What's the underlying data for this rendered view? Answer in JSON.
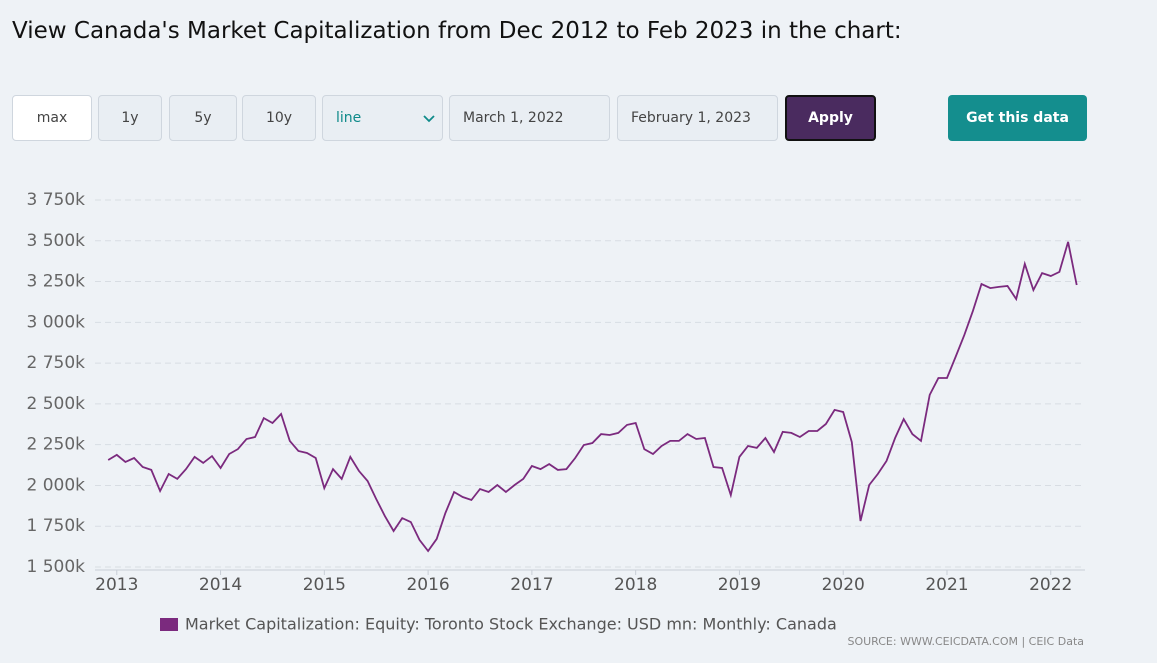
{
  "header": {
    "title": "View Canada's Market Capitalization from Dec 2012 to Feb 2023 in the chart:"
  },
  "controls": {
    "ranges": [
      "max",
      "1y",
      "5y",
      "10y"
    ],
    "chart_type": "line",
    "start_date": "March 1, 2022",
    "end_date": "February 1, 2023",
    "apply": "Apply",
    "get_data": "Get this data"
  },
  "chart_data": {
    "type": "line",
    "source": "SOURCE: WWW.CEICDATA.COM | CEIC Data",
    "x": [
      2012.917,
      2013,
      2013.083,
      2013.167,
      2013.25,
      2013.333,
      2013.417,
      2013.5,
      2013.583,
      2013.667,
      2013.75,
      2013.833,
      2013.917,
      2014,
      2014.083,
      2014.167,
      2014.25,
      2014.333,
      2014.417,
      2014.5,
      2014.583,
      2014.667,
      2014.75,
      2014.833,
      2014.917,
      2015,
      2015.083,
      2015.167,
      2015.25,
      2015.333,
      2015.417,
      2015.5,
      2015.583,
      2015.667,
      2015.75,
      2015.833,
      2015.917,
      2016,
      2016.083,
      2016.167,
      2016.25,
      2016.333,
      2016.417,
      2016.5,
      2016.583,
      2016.667,
      2016.75,
      2016.833,
      2016.917,
      2017,
      2017.083,
      2017.167,
      2017.25,
      2017.333,
      2017.417,
      2017.5,
      2017.583,
      2017.667,
      2017.75,
      2017.833,
      2017.917,
      2018,
      2018.083,
      2018.167,
      2018.25,
      2018.333,
      2018.417,
      2018.5,
      2018.583,
      2018.667,
      2018.75,
      2018.833,
      2018.917,
      2019,
      2019.083,
      2019.167,
      2019.25,
      2019.333,
      2019.417,
      2019.5,
      2019.583,
      2019.667,
      2019.75,
      2019.833,
      2019.917,
      2020,
      2020.083,
      2020.167,
      2020.25,
      2020.333,
      2020.417,
      2020.5,
      2020.583,
      2020.667,
      2020.75,
      2020.833,
      2020.917,
      2021,
      2021.083,
      2021.167,
      2021.25,
      2021.333,
      2021.417,
      2021.5,
      2021.583,
      2021.667,
      2021.75,
      2021.833,
      2021.917,
      2022,
      2022.083,
      2022.167,
      2022.25
    ],
    "series": [
      {
        "name": "Market Capitalization: Equity: Toronto Stock Exchange: USD mn: Monthly: Canada",
        "color": "#7b2a7e",
        "values": [
          2156000,
          2187000,
          2144000,
          2168000,
          2113000,
          2095000,
          1966000,
          2070000,
          2040000,
          2100000,
          2175000,
          2138000,
          2180000,
          2107000,
          2193000,
          2223000,
          2285000,
          2297000,
          2413000,
          2383000,
          2438000,
          2273000,
          2211000,
          2199000,
          2168000,
          1984000,
          2100000,
          2040000,
          2175000,
          2089000,
          2027000,
          1917000,
          1813000,
          1721000,
          1800000,
          1776000,
          1666000,
          1598000,
          1672000,
          1831000,
          1960000,
          1929000,
          1911000,
          1978000,
          1960000,
          2003000,
          1960000,
          2003000,
          2040000,
          2119000,
          2100000,
          2131000,
          2095000,
          2100000,
          2168000,
          2248000,
          2260000,
          2315000,
          2309000,
          2322000,
          2371000,
          2383000,
          2223000,
          2193000,
          2242000,
          2273000,
          2273000,
          2315000,
          2285000,
          2291000,
          2113000,
          2107000,
          1941000,
          2175000,
          2242000,
          2230000,
          2291000,
          2205000,
          2328000,
          2322000,
          2297000,
          2334000,
          2334000,
          2377000,
          2463000,
          2450000,
          2266000,
          1782000,
          2003000,
          2070000,
          2150000,
          2291000,
          2407000,
          2315000,
          2273000,
          2555000,
          2659000,
          2659000,
          2788000,
          2922000,
          3070000,
          3235000,
          3210000,
          3217000,
          3223000,
          3143000,
          3358000,
          3198000,
          3302000,
          3284000,
          3309000,
          3493000,
          3229000
        ]
      }
    ],
    "xlim": [
      2012.79,
      2022.33
    ],
    "xticks": [
      2013,
      2014,
      2015,
      2016,
      2017,
      2018,
      2019,
      2020,
      2021,
      2022
    ],
    "ylim": [
      1500000,
      3750000
    ],
    "yticks": [
      {
        "value": 1500000,
        "label": "1 500k"
      },
      {
        "value": 1750000,
        "label": "1 750k"
      },
      {
        "value": 2000000,
        "label": "2 000k"
      },
      {
        "value": 2250000,
        "label": "2 250k"
      },
      {
        "value": 2500000,
        "label": "2 500k"
      },
      {
        "value": 2750000,
        "label": "2 750k"
      },
      {
        "value": 3000000,
        "label": "3 000k"
      },
      {
        "value": 3250000,
        "label": "3 250k"
      },
      {
        "value": 3500000,
        "label": "3 500k"
      },
      {
        "value": 3750000,
        "label": "3 750k"
      }
    ],
    "grid": true
  }
}
